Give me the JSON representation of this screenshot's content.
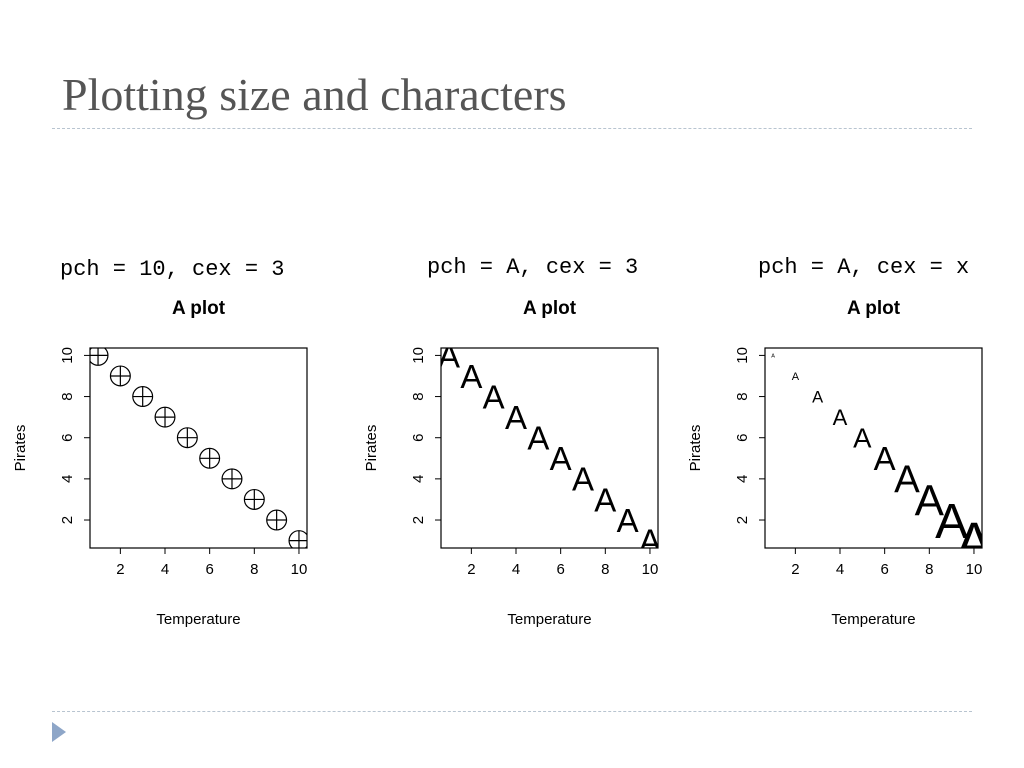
{
  "slide": {
    "title": "Plotting size and characters"
  },
  "panels": [
    {
      "caption": "pch = 10, cex = 3"
    },
    {
      "caption": "pch = A, cex = 3"
    },
    {
      "caption": "pch = A, cex = x"
    }
  ],
  "chart_data": [
    {
      "type": "scatter",
      "title": "A plot",
      "xlabel": "Temperature",
      "ylabel": "Pirates",
      "x": [
        1,
        2,
        3,
        4,
        5,
        6,
        7,
        8,
        9,
        10
      ],
      "y": [
        10,
        9,
        8,
        7,
        6,
        5,
        4,
        3,
        2,
        1
      ],
      "xticks": [
        2,
        4,
        6,
        8,
        10
      ],
      "yticks": [
        2,
        4,
        6,
        8,
        10
      ],
      "xlim": [
        0.64,
        10.36
      ],
      "ylim": [
        0.64,
        10.36
      ],
      "marker": "circle-plus",
      "marker_scale": [
        3,
        3,
        3,
        3,
        3,
        3,
        3,
        3,
        3,
        3
      ]
    },
    {
      "type": "scatter",
      "title": "A plot",
      "xlabel": "Temperature",
      "ylabel": "Pirates",
      "x": [
        1,
        2,
        3,
        4,
        5,
        6,
        7,
        8,
        9,
        10
      ],
      "y": [
        10,
        9,
        8,
        7,
        6,
        5,
        4,
        3,
        2,
        1
      ],
      "xticks": [
        2,
        4,
        6,
        8,
        10
      ],
      "yticks": [
        2,
        4,
        6,
        8,
        10
      ],
      "xlim": [
        0.64,
        10.36
      ],
      "ylim": [
        0.64,
        10.36
      ],
      "marker": "A",
      "marker_scale": [
        3,
        3,
        3,
        3,
        3,
        3,
        3,
        3,
        3,
        3
      ]
    },
    {
      "type": "scatter",
      "title": "A plot",
      "xlabel": "Temperature",
      "ylabel": "Pirates",
      "x": [
        1,
        2,
        3,
        4,
        5,
        6,
        7,
        8,
        9,
        10
      ],
      "y": [
        10,
        9,
        8,
        7,
        6,
        5,
        4,
        3,
        2,
        1
      ],
      "xticks": [
        2,
        4,
        6,
        8,
        10
      ],
      "yticks": [
        2,
        4,
        6,
        8,
        10
      ],
      "xlim": [
        0.64,
        10.36
      ],
      "ylim": [
        0.64,
        10.36
      ],
      "marker": "A",
      "marker_scale": [
        0.5,
        1,
        1.5,
        2,
        2.5,
        3,
        3.5,
        4,
        4.5,
        5
      ]
    }
  ]
}
